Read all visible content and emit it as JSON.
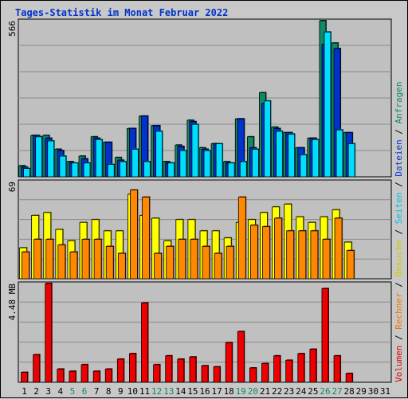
{
  "title": "Tages-Statistik im Monat Februar 2022",
  "right_legend": [
    {
      "text": "Volumen",
      "color": "#dd0000"
    },
    {
      "text": " / ",
      "color": "#000000"
    },
    {
      "text": "Rechner",
      "color": "#ee7700"
    },
    {
      "text": " / ",
      "color": "#000000"
    },
    {
      "text": "Besuche",
      "color": "#cccc00"
    },
    {
      "text": " / ",
      "color": "#000000"
    },
    {
      "text": "Seiten",
      "color": "#00bbee"
    },
    {
      "text": " / ",
      "color": "#000000"
    },
    {
      "text": "Dateien",
      "color": "#0033cc"
    },
    {
      "text": " / ",
      "color": "#000000"
    },
    {
      "text": "Anfragen",
      "color": "#118866"
    }
  ],
  "chart_data": [
    {
      "type": "bar",
      "panel": "top",
      "ymax_label": "566",
      "ylim": [
        0,
        566
      ],
      "categories": [
        "1",
        "2",
        "3",
        "4",
        "5",
        "6",
        "7",
        "8",
        "9",
        "10",
        "11",
        "12",
        "13",
        "14",
        "15",
        "16",
        "17",
        "18",
        "19",
        "20",
        "21",
        "22",
        "23",
        "24",
        "25",
        "26",
        "27",
        "28",
        "29",
        "30",
        "31"
      ],
      "series": [
        {
          "name": "Anfragen",
          "color": "#118866",
          "values": [
            40,
            150,
            150,
            100,
            55,
            75,
            145,
            125,
            70,
            175,
            220,
            185,
            55,
            115,
            205,
            105,
            120,
            55,
            210,
            145,
            305,
            180,
            160,
            105,
            140,
            566,
            485,
            160,
            null,
            null,
            null
          ]
        },
        {
          "name": "Dateien",
          "color": "#0033cc",
          "values": [
            35,
            150,
            140,
            95,
            50,
            65,
            140,
            125,
            60,
            175,
            220,
            185,
            50,
            110,
            200,
            100,
            120,
            50,
            210,
            105,
            265,
            175,
            160,
            105,
            140,
            480,
            465,
            160,
            null,
            null,
            null
          ]
        },
        {
          "name": "Seiten",
          "color": "#00ddff",
          "values": [
            30,
            145,
            130,
            75,
            50,
            50,
            135,
            45,
            55,
            100,
            55,
            165,
            50,
            95,
            190,
            95,
            120,
            50,
            55,
            100,
            275,
            165,
            155,
            80,
            135,
            525,
            170,
            120,
            null,
            null,
            null
          ]
        }
      ]
    },
    {
      "type": "bar",
      "panel": "middle",
      "ymax_label": "69",
      "ylim": [
        0,
        69
      ],
      "categories": [
        "1",
        "2",
        "3",
        "4",
        "5",
        "6",
        "7",
        "8",
        "9",
        "10",
        "11",
        "12",
        "13",
        "14",
        "15",
        "16",
        "17",
        "18",
        "19",
        "20",
        "21",
        "22",
        "23",
        "24",
        "25",
        "26",
        "27",
        "28",
        "29",
        "30",
        "31"
      ],
      "series": [
        {
          "name": "Besuche",
          "color": "#ffff00",
          "values": [
            22,
            45,
            47,
            35,
            27,
            40,
            42,
            34,
            34,
            60,
            45,
            43,
            27,
            42,
            42,
            34,
            34,
            29,
            40,
            42,
            47,
            51,
            53,
            44,
            40,
            44,
            49,
            26,
            null,
            null,
            null
          ]
        },
        {
          "name": "Rechner",
          "color": "#ff8800",
          "values": [
            19,
            28,
            28,
            24,
            19,
            28,
            28,
            23,
            18,
            63,
            58,
            18,
            23,
            28,
            28,
            23,
            18,
            23,
            58,
            38,
            37,
            43,
            34,
            34,
            34,
            28,
            43,
            20,
            null,
            null,
            null
          ]
        }
      ]
    },
    {
      "type": "bar",
      "panel": "bottom",
      "ymax_label": "4.48 MB",
      "ylim": [
        0,
        4.48
      ],
      "categories": [
        "1",
        "2",
        "3",
        "4",
        "5",
        "6",
        "7",
        "8",
        "9",
        "10",
        "11",
        "12",
        "13",
        "14",
        "15",
        "16",
        "17",
        "18",
        "19",
        "20",
        "21",
        "22",
        "23",
        "24",
        "25",
        "26",
        "27",
        "28",
        "29",
        "30",
        "31"
      ],
      "series": [
        {
          "name": "Volumen",
          "color": "#ee0000",
          "values": [
            0.45,
            1.25,
            4.48,
            0.6,
            0.5,
            0.8,
            0.5,
            0.6,
            1.05,
            1.3,
            3.6,
            0.8,
            1.2,
            1.05,
            1.15,
            0.75,
            0.7,
            1.8,
            2.3,
            0.65,
            0.85,
            1.2,
            1.0,
            1.3,
            1.5,
            4.25,
            1.2,
            0.4,
            null,
            null,
            null
          ]
        }
      ]
    }
  ],
  "x_label_colors": {
    "weekend": "#118866",
    "weekday": "#000000"
  },
  "weekend_days": [
    "5",
    "6",
    "12",
    "13",
    "19",
    "20",
    "26",
    "27"
  ]
}
